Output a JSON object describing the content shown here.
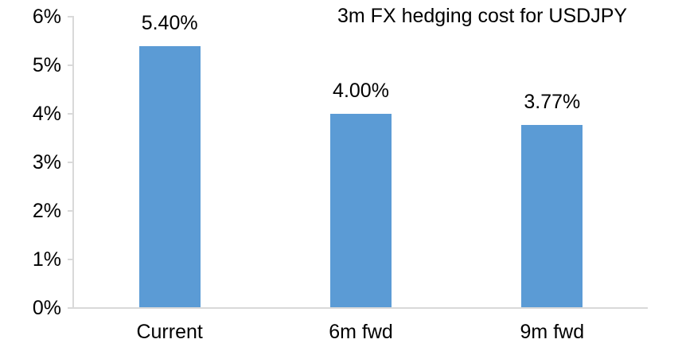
{
  "chart_data": {
    "type": "bar",
    "title": "3m FX hedging cost for USDJPY",
    "categories": [
      "Current",
      "6m fwd",
      "9m fwd"
    ],
    "values": [
      5.4,
      4.0,
      3.77
    ],
    "data_labels": [
      "5.40%",
      "4.00%",
      "3.77%"
    ],
    "xlabel": "",
    "ylabel": "",
    "ylim": [
      0,
      6
    ],
    "ytick_step": 1,
    "ytick_labels": [
      "0%",
      "1%",
      "2%",
      "3%",
      "4%",
      "5%",
      "6%"
    ],
    "grid": false,
    "legend": false,
    "colors": {
      "bar": "#5B9BD5",
      "axis": "#D9D9D9",
      "text": "#000000",
      "background": "#FFFFFF"
    }
  }
}
